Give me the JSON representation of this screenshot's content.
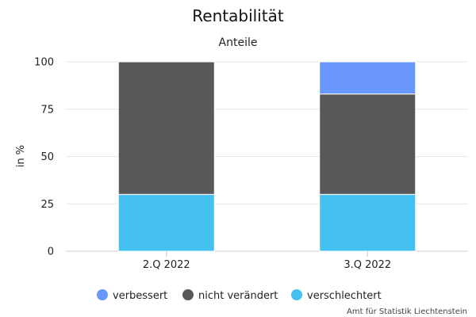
{
  "chart_data": {
    "type": "bar",
    "stacked": true,
    "title": "Rentabilität",
    "subtitle": "Anteile",
    "ylabel": "in %",
    "ylim": [
      0,
      100
    ],
    "yticks": [
      0,
      25,
      50,
      75,
      100
    ],
    "categories": [
      "2.Q 2022",
      "3.Q 2022"
    ],
    "series": [
      {
        "name": "verschlechtert",
        "color": "#44c1f0",
        "values": [
          30,
          30
        ]
      },
      {
        "name": "nicht verändert",
        "color": "#58585a",
        "values": [
          70,
          53
        ]
      },
      {
        "name": "verbessert",
        "color": "#6a97fb",
        "values": [
          0,
          17
        ]
      }
    ],
    "legend": {
      "position": "bottom",
      "order": [
        "verbessert",
        "nicht verändert",
        "verschlechtert"
      ]
    },
    "grid": true
  },
  "credit": "Amt für Statistik Liechtenstein"
}
